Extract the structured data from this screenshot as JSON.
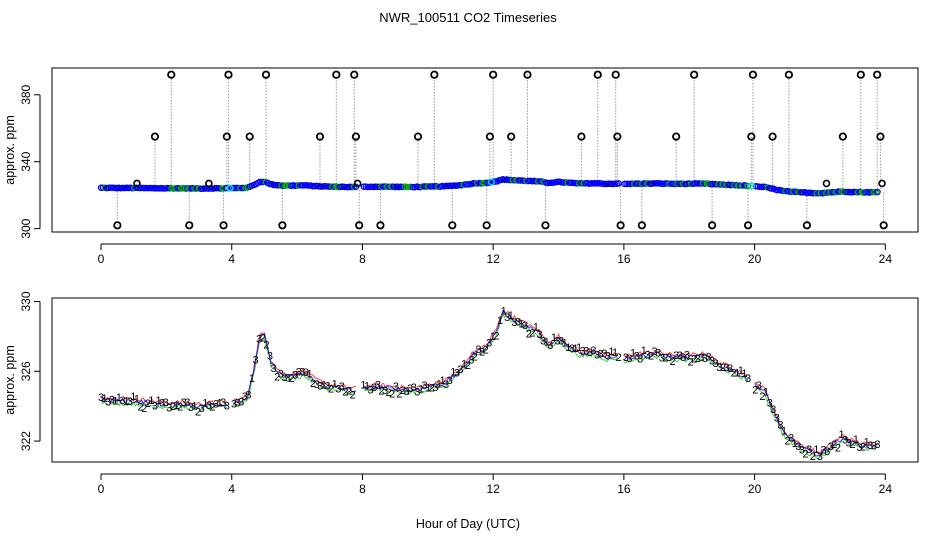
{
  "chart_data": [
    {
      "type": "scatter",
      "title": "NWR_100511  CO2 Timeseries",
      "xlabel": "",
      "ylabel": "approx. ppm",
      "xlim": [
        -1.5,
        25
      ],
      "ylim": [
        298,
        396
      ],
      "xticks": [
        "0",
        "4",
        "8",
        "12",
        "16",
        "20",
        "24"
      ],
      "yticks": [
        "300",
        "340",
        "380"
      ],
      "outliers": [
        {
          "x": 0.5,
          "y": 302
        },
        {
          "x": 1.65,
          "y": 355
        },
        {
          "x": 2.15,
          "y": 392
        },
        {
          "x": 2.7,
          "y": 302
        },
        {
          "x": 3.75,
          "y": 302
        },
        {
          "x": 3.85,
          "y": 355
        },
        {
          "x": 3.9,
          "y": 392
        },
        {
          "x": 4.55,
          "y": 355
        },
        {
          "x": 5.05,
          "y": 392
        },
        {
          "x": 5.55,
          "y": 302
        },
        {
          "x": 6.7,
          "y": 355
        },
        {
          "x": 7.2,
          "y": 392
        },
        {
          "x": 7.75,
          "y": 392
        },
        {
          "x": 7.8,
          "y": 355
        },
        {
          "x": 7.9,
          "y": 302
        },
        {
          "x": 8.55,
          "y": 302
        },
        {
          "x": 9.7,
          "y": 355
        },
        {
          "x": 10.2,
          "y": 392
        },
        {
          "x": 10.75,
          "y": 302
        },
        {
          "x": 11.8,
          "y": 302
        },
        {
          "x": 11.9,
          "y": 355
        },
        {
          "x": 12.0,
          "y": 392
        },
        {
          "x": 12.55,
          "y": 355
        },
        {
          "x": 13.05,
          "y": 392
        },
        {
          "x": 13.6,
          "y": 302
        },
        {
          "x": 14.7,
          "y": 355
        },
        {
          "x": 15.2,
          "y": 392
        },
        {
          "x": 15.75,
          "y": 392
        },
        {
          "x": 15.8,
          "y": 355
        },
        {
          "x": 15.9,
          "y": 302
        },
        {
          "x": 16.55,
          "y": 302
        },
        {
          "x": 17.6,
          "y": 355
        },
        {
          "x": 18.15,
          "y": 392
        },
        {
          "x": 18.7,
          "y": 302
        },
        {
          "x": 19.8,
          "y": 302
        },
        {
          "x": 19.9,
          "y": 355
        },
        {
          "x": 19.95,
          "y": 392
        },
        {
          "x": 20.55,
          "y": 355
        },
        {
          "x": 21.05,
          "y": 392
        },
        {
          "x": 21.6,
          "y": 302
        },
        {
          "x": 22.7,
          "y": 355
        },
        {
          "x": 23.25,
          "y": 392
        },
        {
          "x": 23.75,
          "y": 392
        },
        {
          "x": 23.85,
          "y": 355
        },
        {
          "x": 23.95,
          "y": 302
        }
      ],
      "reference_markers": [
        {
          "x": 1.1,
          "y": 327
        },
        {
          "x": 3.3,
          "y": 327
        },
        {
          "x": 7.85,
          "y": 327
        },
        {
          "x": 22.2,
          "y": 327
        },
        {
          "x": 23.9,
          "y": 327
        }
      ]
    },
    {
      "type": "scatter",
      "title": "",
      "xlabel": "Hour of Day (UTC)",
      "ylabel": "approx. ppm",
      "xlim": [
        -1.5,
        25
      ],
      "ylim": [
        320.8,
        330.2
      ],
      "xticks": [
        "0",
        "4",
        "8",
        "12",
        "16",
        "20",
        "24"
      ],
      "yticks": [
        "322",
        "326",
        "330"
      ],
      "gaps": [
        [
          3.85,
          4.0
        ],
        [
          7.8,
          8.0
        ],
        [
          15.85,
          16.0
        ],
        [
          19.85,
          20.0
        ]
      ],
      "series": [
        {
          "name": "1",
          "color": "#ff0000"
        },
        {
          "name": "2",
          "color": "#00bb00"
        },
        {
          "name": "3",
          "color": "#0000ff"
        }
      ],
      "curve": [
        {
          "x": 0.0,
          "y": 324.4
        },
        {
          "x": 0.5,
          "y": 324.3
        },
        {
          "x": 1.0,
          "y": 324.3
        },
        {
          "x": 1.5,
          "y": 324.2
        },
        {
          "x": 2.0,
          "y": 324.1
        },
        {
          "x": 2.5,
          "y": 324.1
        },
        {
          "x": 3.0,
          "y": 324.0
        },
        {
          "x": 3.5,
          "y": 324.1
        },
        {
          "x": 3.8,
          "y": 324.1
        },
        {
          "x": 4.0,
          "y": 324.2
        },
        {
          "x": 4.3,
          "y": 324.3
        },
        {
          "x": 4.5,
          "y": 324.6
        },
        {
          "x": 4.7,
          "y": 326.3
        },
        {
          "x": 4.85,
          "y": 327.9
        },
        {
          "x": 5.0,
          "y": 328.1
        },
        {
          "x": 5.2,
          "y": 326.5
        },
        {
          "x": 5.5,
          "y": 325.8
        },
        {
          "x": 5.8,
          "y": 325.7
        },
        {
          "x": 6.2,
          "y": 325.9
        },
        {
          "x": 6.6,
          "y": 325.4
        },
        {
          "x": 7.0,
          "y": 325.1
        },
        {
          "x": 7.4,
          "y": 325.0
        },
        {
          "x": 7.75,
          "y": 324.9
        },
        {
          "x": 8.0,
          "y": 325.0
        },
        {
          "x": 8.5,
          "y": 325.1
        },
        {
          "x": 9.0,
          "y": 325.0
        },
        {
          "x": 9.5,
          "y": 324.9
        },
        {
          "x": 10.0,
          "y": 325.1
        },
        {
          "x": 10.5,
          "y": 325.3
        },
        {
          "x": 11.0,
          "y": 326.0
        },
        {
          "x": 11.4,
          "y": 327.0
        },
        {
          "x": 11.8,
          "y": 327.4
        },
        {
          "x": 12.1,
          "y": 328.3
        },
        {
          "x": 12.3,
          "y": 329.4
        },
        {
          "x": 12.6,
          "y": 329.0
        },
        {
          "x": 13.0,
          "y": 328.6
        },
        {
          "x": 13.4,
          "y": 328.2
        },
        {
          "x": 13.7,
          "y": 327.4
        },
        {
          "x": 14.0,
          "y": 327.9
        },
        {
          "x": 14.3,
          "y": 327.4
        },
        {
          "x": 14.7,
          "y": 327.0
        },
        {
          "x": 15.1,
          "y": 327.1
        },
        {
          "x": 15.5,
          "y": 326.8
        },
        {
          "x": 15.8,
          "y": 326.9
        },
        {
          "x": 16.0,
          "y": 326.7
        },
        {
          "x": 16.5,
          "y": 326.9
        },
        {
          "x": 17.0,
          "y": 327.0
        },
        {
          "x": 17.5,
          "y": 326.8
        },
        {
          "x": 18.0,
          "y": 326.8
        },
        {
          "x": 18.5,
          "y": 326.9
        },
        {
          "x": 19.0,
          "y": 326.3
        },
        {
          "x": 19.5,
          "y": 325.9
        },
        {
          "x": 19.8,
          "y": 325.6
        },
        {
          "x": 20.0,
          "y": 325.2
        },
        {
          "x": 20.3,
          "y": 324.9
        },
        {
          "x": 20.6,
          "y": 323.6
        },
        {
          "x": 20.9,
          "y": 322.4
        },
        {
          "x": 21.3,
          "y": 321.8
        },
        {
          "x": 21.7,
          "y": 321.4
        },
        {
          "x": 22.0,
          "y": 321.2
        },
        {
          "x": 22.4,
          "y": 321.8
        },
        {
          "x": 22.7,
          "y": 322.2
        },
        {
          "x": 23.0,
          "y": 321.9
        },
        {
          "x": 23.4,
          "y": 321.7
        },
        {
          "x": 23.8,
          "y": 321.8
        }
      ]
    }
  ]
}
